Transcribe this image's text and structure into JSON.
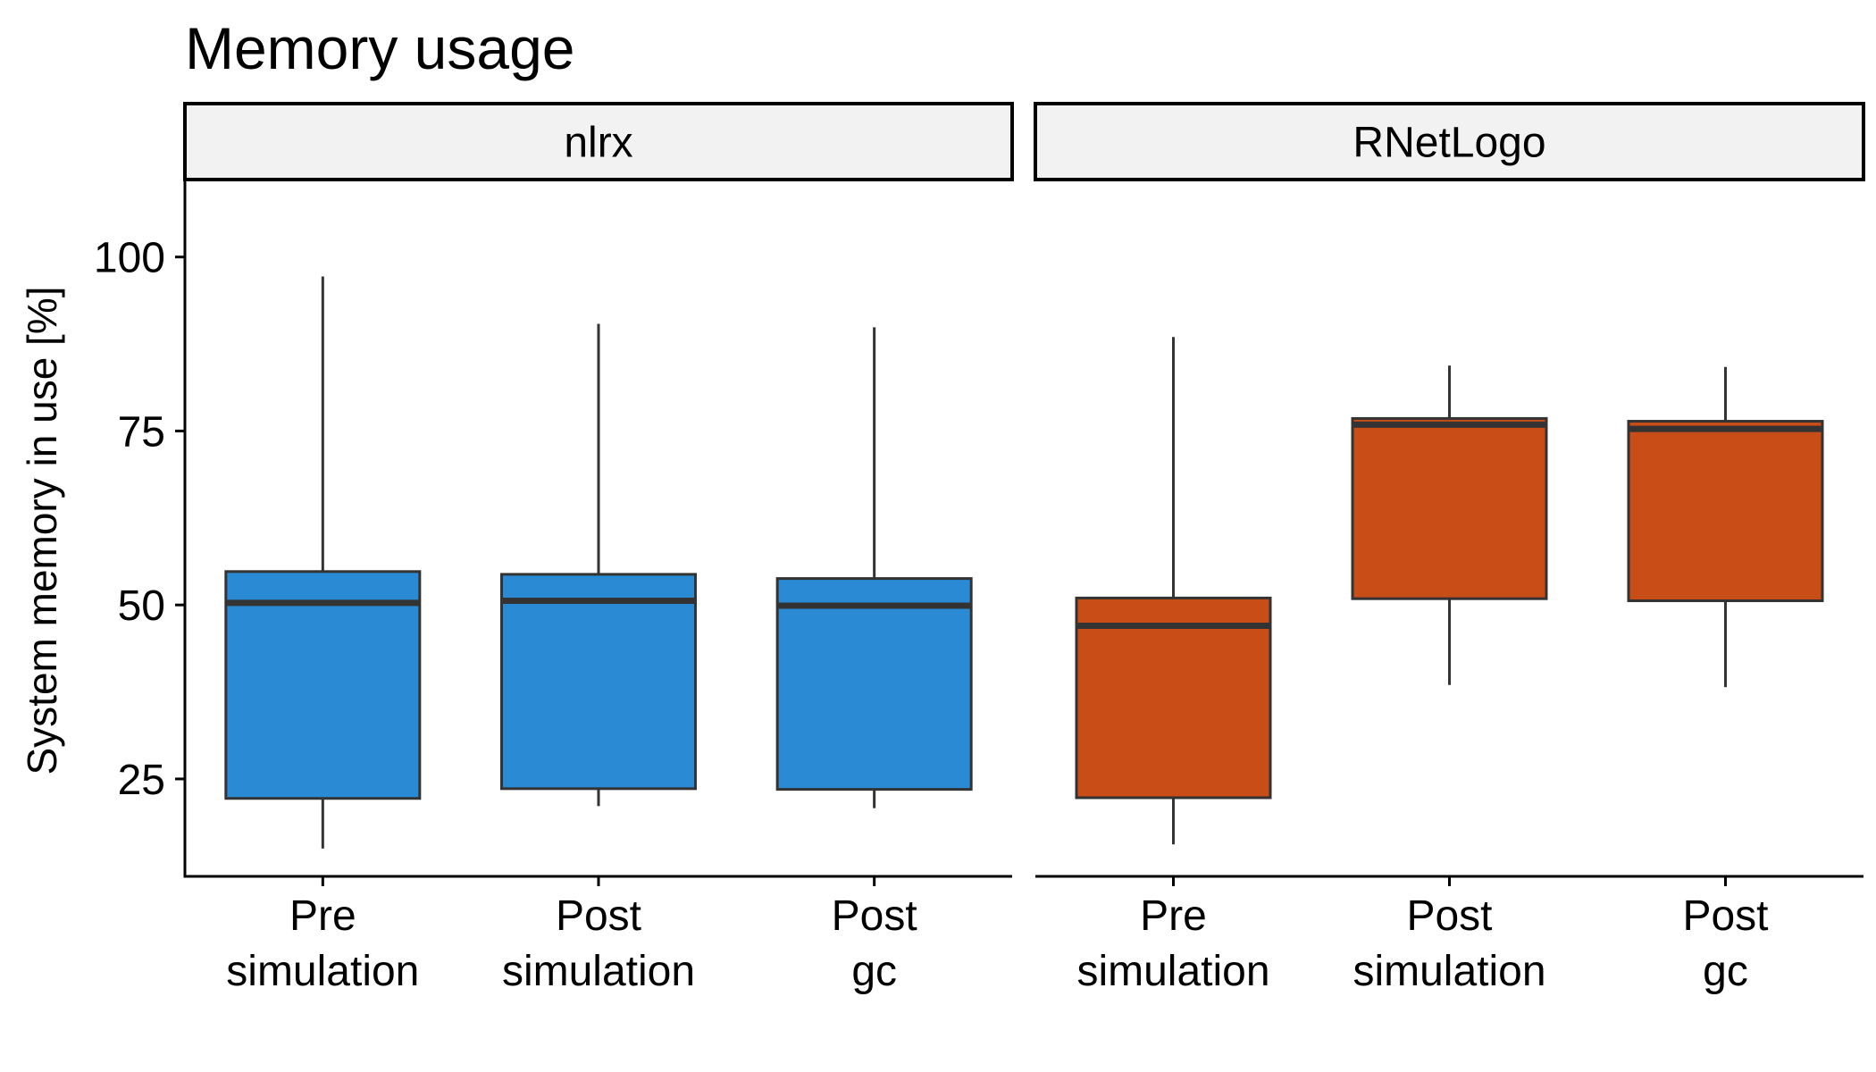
{
  "chart_data": {
    "type": "boxplot",
    "title": "Memory usage",
    "ylabel": "System memory in use [%]",
    "xlabel": "",
    "ylim": [
      11,
      111
    ],
    "yticks": [
      25,
      50,
      75,
      100
    ],
    "grid": false,
    "legend": "none",
    "categories": [
      "Pre\nsimulation",
      "Post\nsimulation",
      "Post\ngc"
    ],
    "panels": [
      {
        "name": "nlrx",
        "color": "#2a8ad4",
        "boxes": [
          {
            "category": "Pre\nsimulation",
            "min": 15,
            "q1": 22.2,
            "median": 50.3,
            "q3": 54.8,
            "max": 97.2
          },
          {
            "category": "Post\nsimulation",
            "min": 21.1,
            "q1": 23.6,
            "median": 50.6,
            "q3": 54.4,
            "max": 90.4
          },
          {
            "category": "Post\ngc",
            "min": 20.8,
            "q1": 23.5,
            "median": 49.9,
            "q3": 53.8,
            "max": 89.9
          }
        ]
      },
      {
        "name": "RNetLogo",
        "color": "#c94d16",
        "boxes": [
          {
            "category": "Pre\nsimulation",
            "min": 15.6,
            "q1": 22.3,
            "median": 47,
            "q3": 51,
            "max": 88.5
          },
          {
            "category": "Post\nsimulation",
            "min": 38.5,
            "q1": 50.9,
            "median": 75.9,
            "q3": 76.8,
            "max": 84.4
          },
          {
            "category": "Post\ngc",
            "min": 38.2,
            "q1": 50.6,
            "median": 75.3,
            "q3": 76.4,
            "max": 84.2
          }
        ]
      }
    ]
  }
}
